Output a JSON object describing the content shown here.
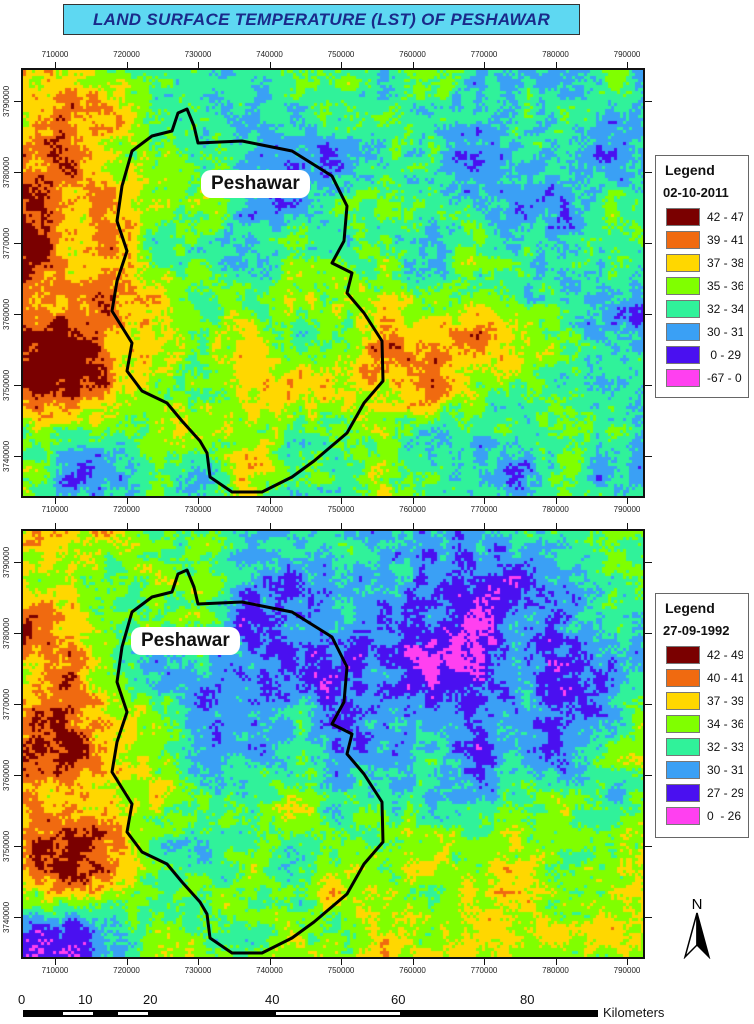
{
  "title": "LAND SURFACE TEMPERATURE (LST) OF PESHAWAR",
  "x_ticks": [
    "710000",
    "720000",
    "730000",
    "740000",
    "750000",
    "760000",
    "770000",
    "780000",
    "790000"
  ],
  "y_ticks": [
    "3790000",
    "3780000",
    "3770000",
    "3760000",
    "3750000",
    "3740000"
  ],
  "city_label": "Peshawar",
  "maps": [
    {
      "legend_title": "Legend",
      "date": "02-10-2011",
      "classes": [
        {
          "label": "42 - 47",
          "color": "#7a0000"
        },
        {
          "label": "39 - 41",
          "color": "#f06a10"
        },
        {
          "label": "37 - 38",
          "color": "#ffd700"
        },
        {
          "label": "35 - 36",
          "color": "#80ff00"
        },
        {
          "label": "32 - 34",
          "color": "#30f29a"
        },
        {
          "label": "30 - 31",
          "color": "#3aa0f5"
        },
        {
          "label": " 0 - 29",
          "color": "#4a10f0"
        },
        {
          "label": "-67 - 0",
          "color": "#ff40f0"
        }
      ]
    },
    {
      "legend_title": "Legend",
      "date": "27-09-1992",
      "classes": [
        {
          "label": "42 - 49",
          "color": "#7a0000"
        },
        {
          "label": "40 - 41",
          "color": "#f06a10"
        },
        {
          "label": "37 - 39",
          "color": "#ffd700"
        },
        {
          "label": "34 - 36",
          "color": "#80ff00"
        },
        {
          "label": "32 - 33",
          "color": "#30f29a"
        },
        {
          "label": "30 - 31",
          "color": "#3aa0f5"
        },
        {
          "label": "27 - 29",
          "color": "#4a10f0"
        },
        {
          "label": "0  - 26",
          "color": "#ff40f0"
        }
      ]
    }
  ],
  "north_label": "N",
  "scale_bar": {
    "labels": [
      "0",
      "10",
      "20",
      "40",
      "60",
      "80"
    ],
    "unit": "Kilometers"
  }
}
